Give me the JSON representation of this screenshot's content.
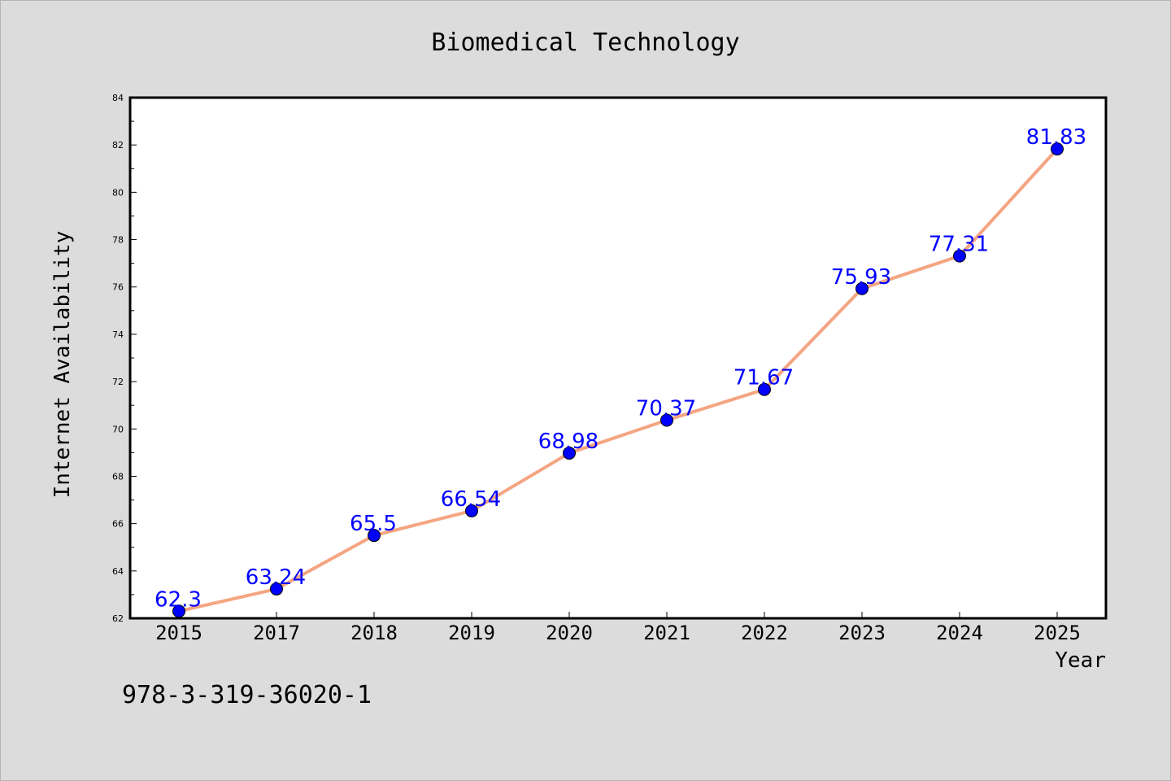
{
  "chart_data": {
    "type": "line",
    "title": "Biomedical Technology",
    "xlabel": "Year",
    "ylabel": "Internet Availability",
    "categories": [
      "2015",
      "2017",
      "2018",
      "2019",
      "2020",
      "2021",
      "2022",
      "2023",
      "2024",
      "2025"
    ],
    "series": [
      {
        "values": [
          62.3,
          63.24,
          65.5,
          66.54,
          68.98,
          70.37,
          71.67,
          75.93,
          77.31,
          81.83
        ],
        "labels": [
          "62.3",
          "63.24",
          "65.5",
          "66.54",
          "68.98",
          "70.37",
          "71.67",
          "75.93",
          "77.31",
          "81.83"
        ]
      }
    ],
    "ylim": [
      62,
      84
    ],
    "yticks": [
      62,
      64,
      66,
      68,
      70,
      72,
      74,
      76,
      78,
      80,
      82,
      84
    ],
    "grid": false,
    "legend": "none",
    "colors": {
      "background": "#dcdcdc",
      "plot_area": "#ffffff",
      "line": "#f4a582",
      "marker": "#0000ff",
      "data_label": "#0000ff"
    }
  },
  "footer": {
    "text": "978-3-319-36020-1"
  }
}
